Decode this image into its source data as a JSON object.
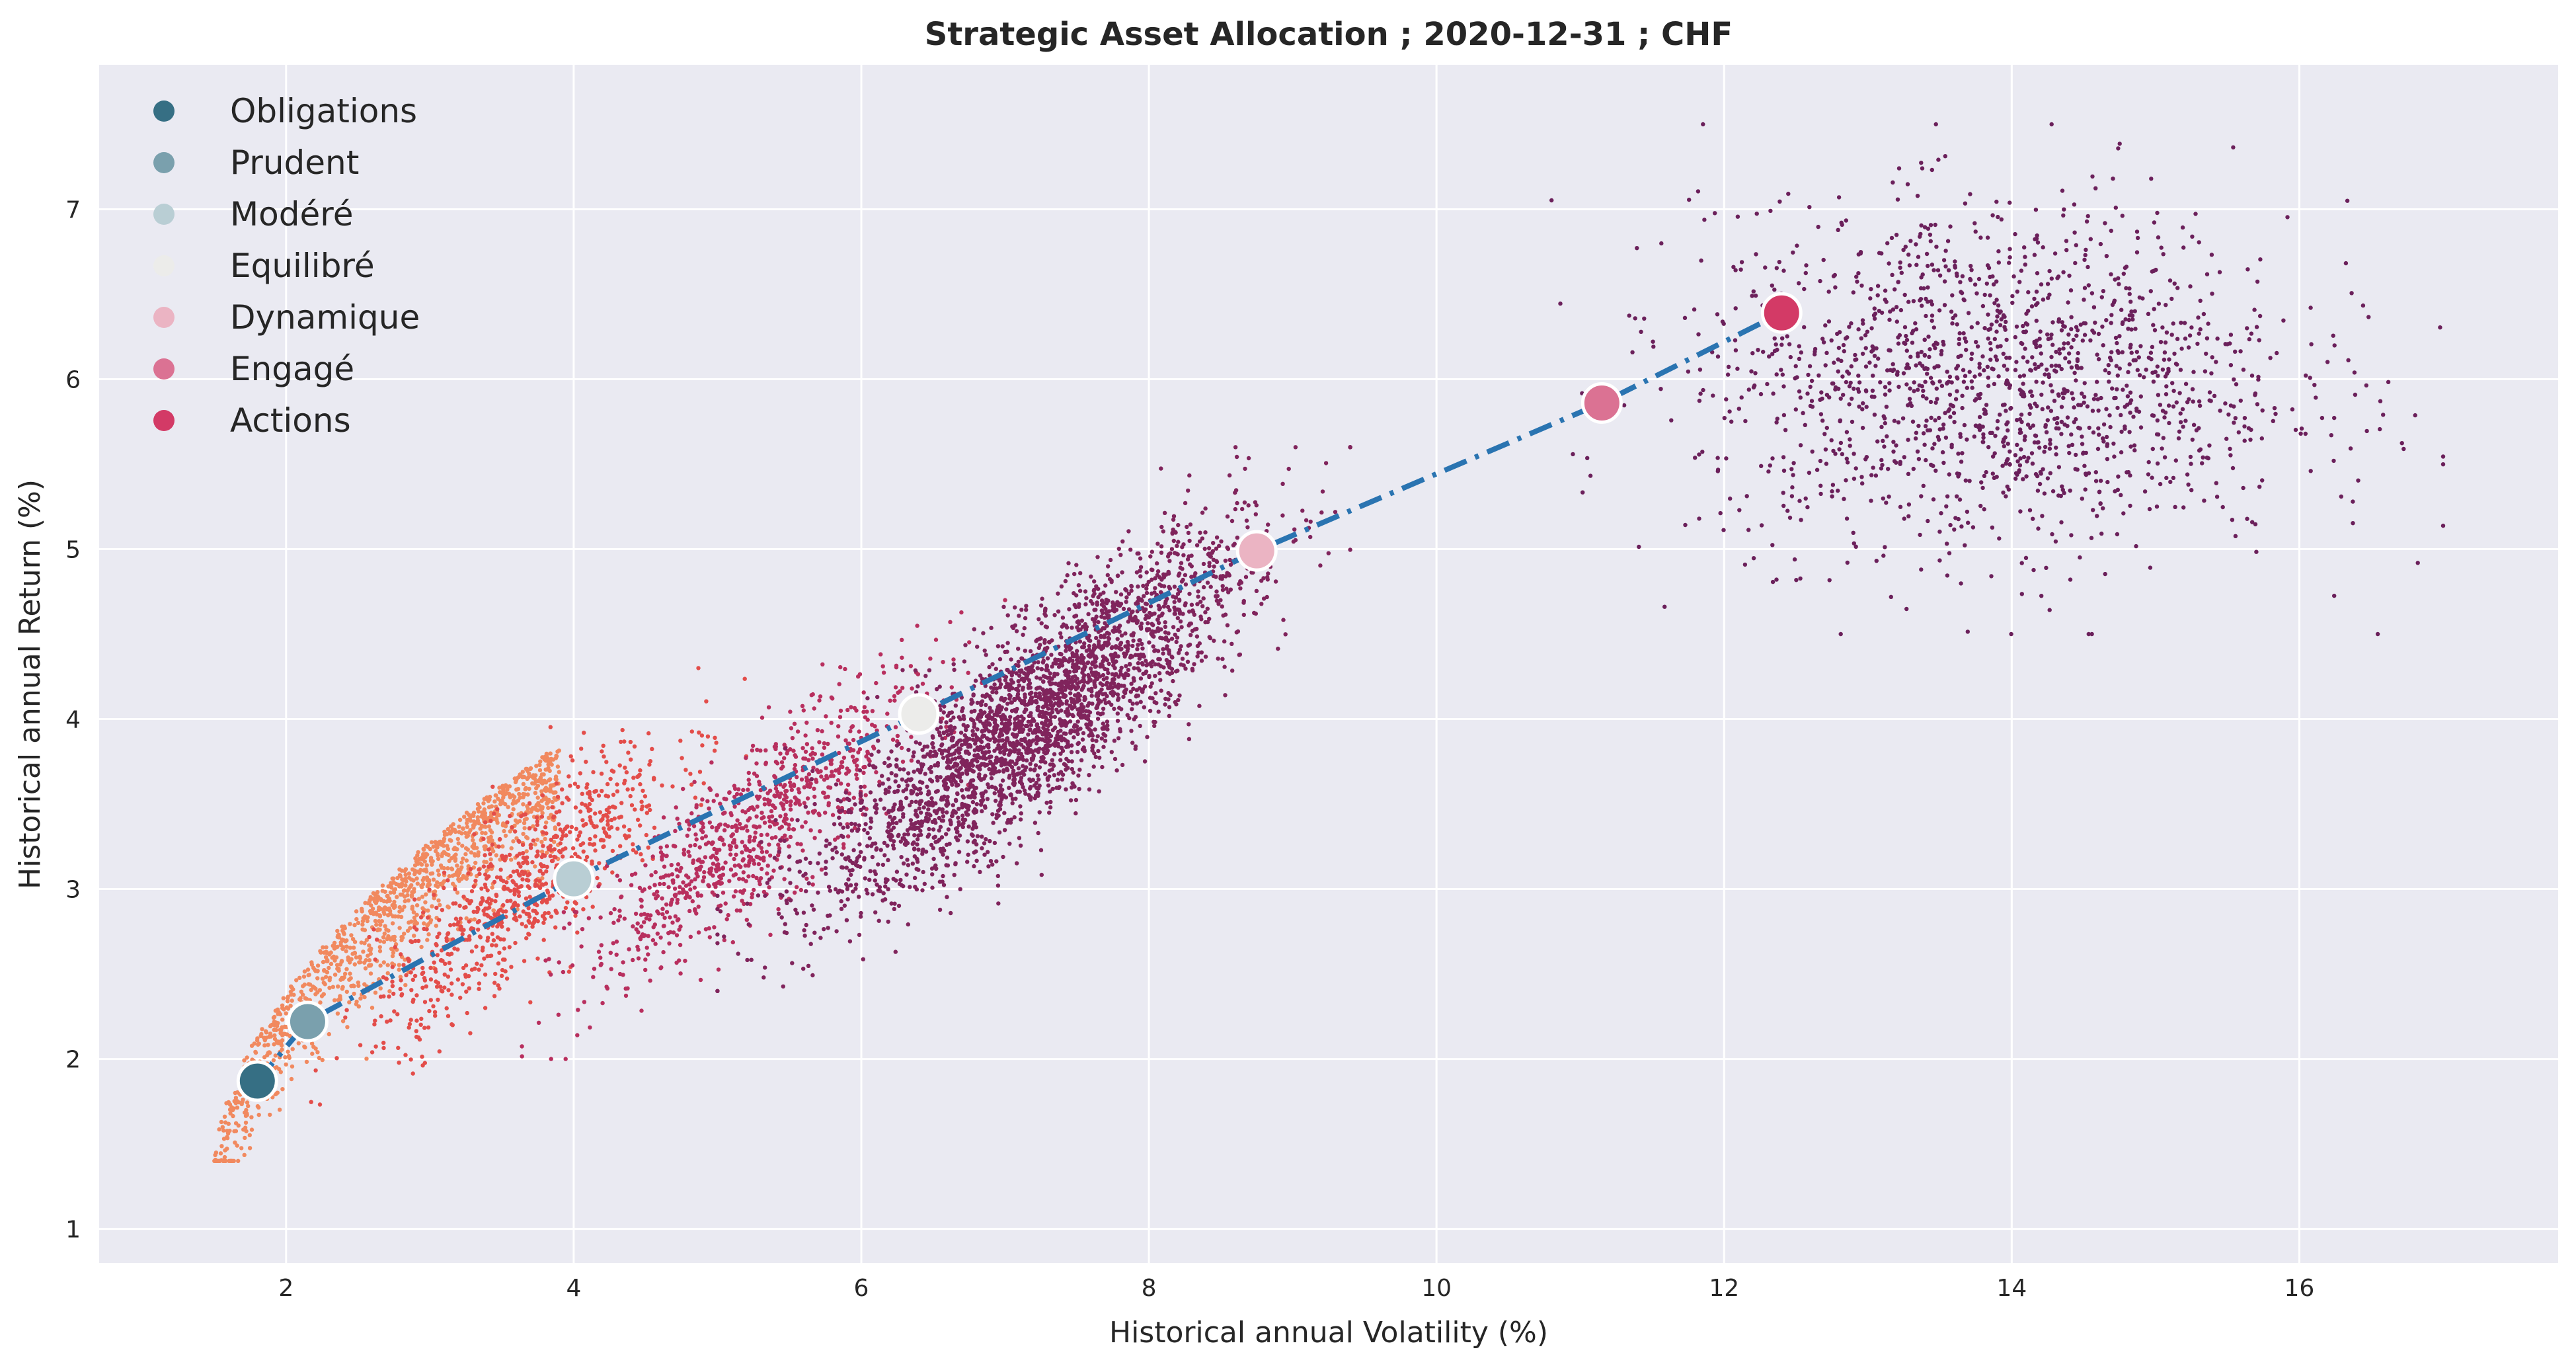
{
  "chart_data": {
    "type": "scatter",
    "title": "Strategic Asset Allocation ; 2020-12-31 ; CHF",
    "xlabel": "Historical annual Volatility (%)",
    "ylabel": "Historical annual Return (%)",
    "xlim": [
      0.7,
      17.8
    ],
    "ylim": [
      0.8,
      7.85
    ],
    "x_ticks": [
      "2",
      "4",
      "6",
      "8",
      "10",
      "12",
      "14",
      "16"
    ],
    "y_ticks": [
      "1",
      "2",
      "3",
      "4",
      "5",
      "6",
      "7"
    ],
    "grid": true,
    "legend_position": "top-left",
    "background_color": "#eaeaf2",
    "frontier_line": {
      "style": "dash-dot",
      "color": "#2a74b1",
      "x": [
        1.8,
        2.15,
        4.0,
        6.4,
        8.75,
        11.15,
        12.4
      ],
      "y": [
        1.87,
        2.22,
        3.06,
        4.03,
        4.99,
        5.86,
        6.39
      ]
    },
    "series": [
      {
        "name": "Obligations",
        "color": "#366f84",
        "x": [
          1.8
        ],
        "y": [
          1.87
        ]
      },
      {
        "name": "Prudent",
        "color": "#7aa0ad",
        "x": [
          2.15
        ],
        "y": [
          2.22
        ]
      },
      {
        "name": "Modéré",
        "color": "#b9ced4",
        "x": [
          4.0
        ],
        "y": [
          3.06
        ]
      },
      {
        "name": "Equilibré",
        "color": "#ececea",
        "x": [
          6.4
        ],
        "y": [
          4.03
        ]
      },
      {
        "name": "Dynamique",
        "color": "#ebb4c3",
        "x": [
          8.75
        ],
        "y": [
          4.99
        ]
      },
      {
        "name": "Engagé",
        "color": "#db7293",
        "x": [
          11.15
        ],
        "y": [
          5.86
        ]
      },
      {
        "name": "Actions",
        "color": "#d33a66",
        "x": [
          12.4
        ],
        "y": [
          6.39
        ]
      }
    ],
    "simulated_portfolios": {
      "description": "",
      "colors": [
        "#f1895f",
        "#e34d4a",
        "#b82f5e",
        "#80245c",
        "#5e1f5a"
      ],
      "clusters": [
        {
          "color": "#f1895f",
          "count": 1300,
          "x_range": [
            1.5,
            3.9
          ],
          "y_range": [
            1.4,
            3.9
          ]
        },
        {
          "color": "#e34d4a",
          "count": 800,
          "x_range": [
            2.1,
            5.2
          ],
          "y_range": [
            1.7,
            4.3
          ]
        },
        {
          "color": "#b82f5e",
          "count": 900,
          "x_range": [
            3.5,
            7.0
          ],
          "y_range": [
            2.0,
            4.7
          ]
        },
        {
          "color": "#80245c",
          "count": 3000,
          "x_range": [
            5.0,
            9.4
          ],
          "y_range": [
            2.4,
            5.6
          ]
        },
        {
          "color": "#6b205b",
          "count": 1600,
          "x_range": [
            10.8,
            17.0
          ],
          "y_range": [
            4.5,
            7.5
          ]
        }
      ]
    }
  }
}
